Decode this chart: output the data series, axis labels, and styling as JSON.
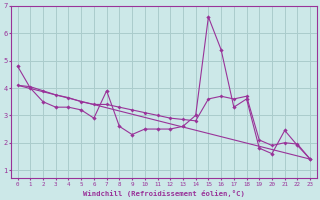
{
  "xlabel": "Windchill (Refroidissement éolien,°C)",
  "background_color": "#cce8e8",
  "line_color": "#993399",
  "grid_color": "#aacccc",
  "xlim": [
    -0.5,
    23.5
  ],
  "ylim": [
    0.7,
    7.0
  ],
  "xticks": [
    0,
    1,
    2,
    3,
    4,
    5,
    6,
    7,
    8,
    9,
    10,
    11,
    12,
    13,
    14,
    15,
    16,
    17,
    18,
    19,
    20,
    21,
    22,
    23
  ],
  "yticks": [
    1,
    2,
    3,
    4,
    5,
    6,
    7
  ],
  "line1_x": [
    0,
    1,
    2,
    3,
    4,
    5,
    6,
    7,
    8,
    9,
    10,
    11,
    12,
    13,
    14,
    15,
    16,
    17,
    18,
    19,
    20,
    21,
    22,
    23
  ],
  "line1_y": [
    4.8,
    4.0,
    3.5,
    3.3,
    3.3,
    3.2,
    2.9,
    3.9,
    2.6,
    2.3,
    2.5,
    2.5,
    2.5,
    2.6,
    3.0,
    6.6,
    5.4,
    3.3,
    3.6,
    1.8,
    1.6,
    2.45,
    1.9,
    1.4
  ],
  "line2_x": [
    0,
    1,
    2,
    3,
    4,
    5,
    6,
    7,
    8,
    9,
    10,
    11,
    12,
    13,
    14,
    15,
    16,
    17,
    18,
    19,
    20,
    21,
    22,
    23
  ],
  "line2_y": [
    4.1,
    4.05,
    3.9,
    3.75,
    3.65,
    3.5,
    3.4,
    3.4,
    3.3,
    3.2,
    3.1,
    3.0,
    2.9,
    2.85,
    2.8,
    3.6,
    3.7,
    3.6,
    3.7,
    2.1,
    1.9,
    2.0,
    1.95,
    1.4
  ],
  "line3_x": [
    0,
    23
  ],
  "line3_y": [
    4.1,
    1.4
  ]
}
